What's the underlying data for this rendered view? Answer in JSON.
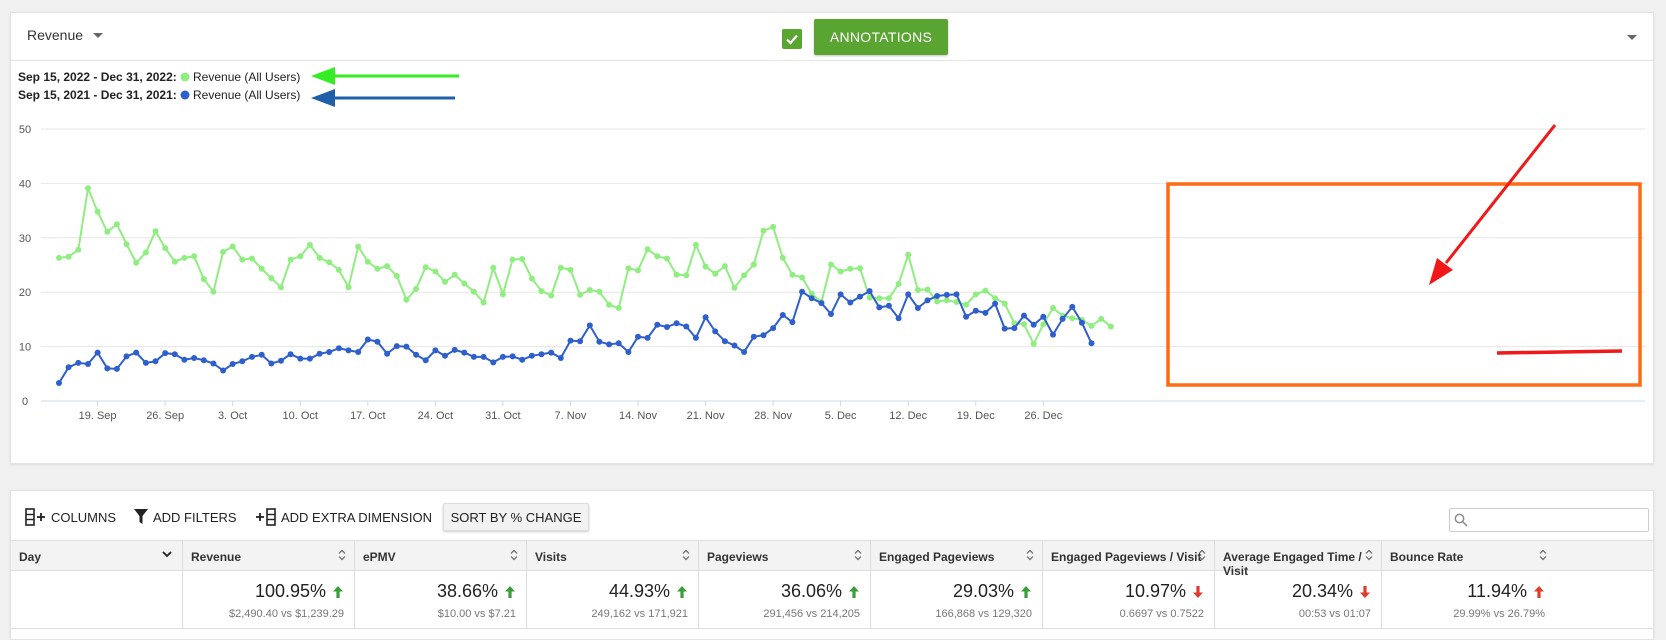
{
  "chart_header": {
    "metric_label": "Revenue",
    "annotations_label": "ANNOTATIONS",
    "annotations_checked": true
  },
  "legend": [
    {
      "period": "Sep 15, 2022 - Dec 31, 2022:",
      "name": "Revenue (All Users)",
      "color": "#90ee80"
    },
    {
      "period": "Sep 15, 2021 - Dec 31, 2021:",
      "name": "Revenue (All Users)",
      "color": "#2f5fcc"
    }
  ],
  "chart_data": {
    "type": "line",
    "x_start": "Sep 15",
    "x_end": "Dec 31",
    "ylim": [
      0,
      50
    ],
    "yticks": [
      0,
      10,
      20,
      30,
      40,
      50
    ],
    "xticks": [
      "19. Sep",
      "26. Sep",
      "3. Oct",
      "10. Oct",
      "17. Oct",
      "24. Oct",
      "31. Oct",
      "7. Nov",
      "14. Nov",
      "21. Nov",
      "28. Nov",
      "5. Dec",
      "12. Dec",
      "19. Dec",
      "26. Dec"
    ],
    "grid": true,
    "series": [
      {
        "name": "Revenue (All Users)",
        "color": "#90ee80",
        "values": [
          26.3,
          26.5,
          27.8,
          39.1,
          34.8,
          31.1,
          32.5,
          28.8,
          25.4,
          27.3,
          31.2,
          28.1,
          25.6,
          26.3,
          26.6,
          22.4,
          20.1,
          27.4,
          28.4,
          26.0,
          26.2,
          24.3,
          22.6,
          20.9,
          26.0,
          26.6,
          28.7,
          26.3,
          25.5,
          24.1,
          20.9,
          28.4,
          25.6,
          24.3,
          24.8,
          23.0,
          18.6,
          20.6,
          24.6,
          23.8,
          21.9,
          23.2,
          21.6,
          20.1,
          18.1,
          24.5,
          19.6,
          26.0,
          26.1,
          22.5,
          20.2,
          19.4,
          24.5,
          24.1,
          19.5,
          20.4,
          20.1,
          17.7,
          17.1,
          24.4,
          24.0,
          27.9,
          26.6,
          26.2,
          23.2,
          23.1,
          28.7,
          24.7,
          23.4,
          24.8,
          20.8,
          23.1,
          25.1,
          31.3,
          32.0,
          26.3,
          23.2,
          22.7,
          19.7,
          18.2,
          25.1,
          23.8,
          24.3,
          24.4,
          19.0,
          18.9,
          18.9,
          21.5,
          26.9,
          20.4,
          20.5,
          18.3,
          18.5,
          18.2,
          17.7,
          19.6,
          20.3,
          18.9,
          17.9,
          14.3,
          14.1,
          10.5,
          14.1,
          17.1,
          15.7,
          15.2,
          14.9,
          13.8,
          15.1,
          13.7
        ]
      },
      {
        "name": "Revenue (All Users)",
        "color": "#2f5fcc",
        "values": [
          3.3,
          6.2,
          7.0,
          6.8,
          8.9,
          6.0,
          5.9,
          8.2,
          8.9,
          7.0,
          7.3,
          8.8,
          8.6,
          7.6,
          7.9,
          7.5,
          6.9,
          5.6,
          6.8,
          7.3,
          8.1,
          8.5,
          6.9,
          7.4,
          8.6,
          7.8,
          7.8,
          8.7,
          9.0,
          9.7,
          9.3,
          9.0,
          11.3,
          10.9,
          8.7,
          10.1,
          10.0,
          8.5,
          7.5,
          9.3,
          8.3,
          9.4,
          8.9,
          8.1,
          8.1,
          7.1,
          8.1,
          8.2,
          7.6,
          8.3,
          8.6,
          8.9,
          7.9,
          11.1,
          11.0,
          13.9,
          10.9,
          10.4,
          10.6,
          9.0,
          11.8,
          11.6,
          14.0,
          13.6,
          14.3,
          13.7,
          11.6,
          15.4,
          12.8,
          11.0,
          10.2,
          9.0,
          11.8,
          12.1,
          13.4,
          15.8,
          14.5,
          20.1,
          18.9,
          18.0,
          16.0,
          19.6,
          18.1,
          19.2,
          20.2,
          17.2,
          17.5,
          15.2,
          19.6,
          17.1,
          18.5,
          19.3,
          19.5,
          19.6,
          15.5,
          16.6,
          16.2,
          17.9,
          13.3,
          13.4,
          15.7,
          14.0,
          15.5,
          12.2,
          15.1,
          17.3,
          14.4,
          10.6
        ]
      }
    ]
  },
  "table": {
    "toolbar": {
      "columns_label": "COLUMNS",
      "filters_label": "ADD FILTERS",
      "dimension_label": "ADD EXTRA DIMENSION",
      "sort_label": "SORT BY % CHANGE"
    },
    "columns": [
      {
        "label": "Day",
        "pct": "",
        "compare": "",
        "trend": ""
      },
      {
        "label": "Revenue",
        "pct": "100.95%",
        "compare": "$2,490.40 vs $1,239.29",
        "trend": "up-good"
      },
      {
        "label": "ePMV",
        "pct": "38.66%",
        "compare": "$10.00 vs $7.21",
        "trend": "up-good"
      },
      {
        "label": "Visits",
        "pct": "44.93%",
        "compare": "249,162 vs 171,921",
        "trend": "up-good"
      },
      {
        "label": "Pageviews",
        "pct": "36.06%",
        "compare": "291,456 vs 214,205",
        "trend": "up-good"
      },
      {
        "label": "Engaged Pageviews",
        "pct": "29.03%",
        "compare": "166,868 vs 129,320",
        "trend": "up-good"
      },
      {
        "label": "Engaged Pageviews / Visit",
        "pct": "10.97%",
        "compare": "0.6697 vs 0.7522",
        "trend": "down-bad"
      },
      {
        "label": "Average Engaged Time / Visit",
        "pct": "20.34%",
        "compare": "00:53 vs 01:07",
        "trend": "down-bad"
      },
      {
        "label": "Bounce Rate",
        "pct": "11.94%",
        "compare": "29.99% vs 26.79%",
        "trend": "up-bad"
      }
    ]
  },
  "colors": {
    "accent_green": "#5aa532",
    "trend_good": "#3d9c3a",
    "trend_bad": "#e03b2b",
    "annotation_orange": "#ff6a13",
    "annotation_red": "#f01818",
    "arrow_green": "#33ee22",
    "arrow_blue": "#1f5ea8"
  }
}
